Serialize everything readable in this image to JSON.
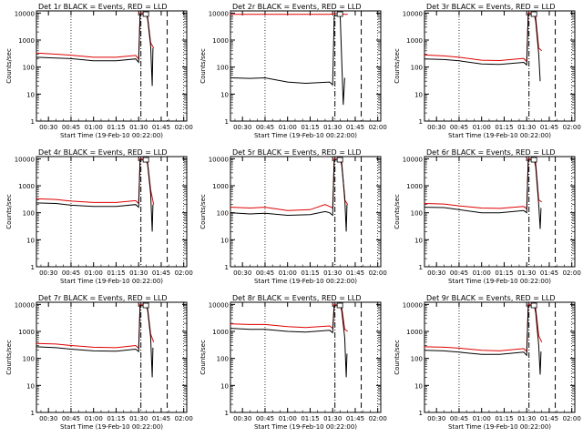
{
  "figure": {
    "xlabel": "Start Time (19-Feb-10 00:22:00)",
    "ylabel": "Counts/sec",
    "time_tick_labels": [
      "00:30",
      "00:45",
      "01:00",
      "01:15",
      "01:30",
      "01:45",
      "02:00"
    ],
    "y_tick_labels": [
      "1",
      "10",
      "100",
      "1000",
      "10000"
    ]
  },
  "chart_data": [
    {
      "type": "line",
      "title": "Det 1r BLACK = Events, RED = LLD",
      "xlabel": "Start Time (19-Feb-10 00:22:00)",
      "ylabel": "Counts/sec",
      "ylog": true,
      "ylim": [
        1,
        12000
      ],
      "xlim": [
        "00:22",
        "02:02"
      ],
      "black": [
        [
          22,
          230
        ],
        [
          35,
          215
        ],
        [
          45,
          205
        ],
        [
          60,
          170
        ],
        [
          75,
          170
        ],
        [
          88,
          200
        ],
        [
          90,
          150
        ],
        [
          91,
          9000
        ],
        [
          95,
          9000
        ],
        [
          96,
          6000
        ],
        [
          98,
          600
        ],
        [
          99,
          20
        ],
        [
          99.5,
          500
        ]
      ],
      "red": [
        [
          22,
          330
        ],
        [
          35,
          300
        ],
        [
          45,
          275
        ],
        [
          60,
          230
        ],
        [
          75,
          230
        ],
        [
          88,
          270
        ],
        [
          90,
          200
        ],
        [
          91,
          10000
        ],
        [
          95,
          10000
        ],
        [
          96,
          7000
        ],
        [
          98,
          800
        ],
        [
          100,
          500
        ]
      ]
    },
    {
      "type": "line",
      "title": "Det 2r BLACK = Events, RED = LLD",
      "xlabel": "Start Time (19-Feb-10 00:22:00)",
      "ylabel": "Counts/sec",
      "ylog": true,
      "ylim": [
        1,
        12000
      ],
      "xlim": [
        "00:22",
        "02:02"
      ],
      "black": [
        [
          22,
          40
        ],
        [
          35,
          38
        ],
        [
          45,
          40
        ],
        [
          60,
          28
        ],
        [
          72,
          25
        ],
        [
          88,
          28
        ],
        [
          90,
          22
        ],
        [
          91,
          8000
        ],
        [
          94,
          8000
        ],
        [
          95,
          9000
        ],
        [
          97,
          4
        ],
        [
          98,
          40
        ]
      ],
      "red": [
        [
          22,
          9000
        ],
        [
          45,
          9000
        ],
        [
          60,
          9000
        ],
        [
          88,
          9000
        ],
        [
          91,
          9500
        ],
        [
          95,
          9500
        ],
        [
          98,
          9000
        ],
        [
          100,
          9000
        ]
      ]
    },
    {
      "type": "line",
      "title": "Det 3r BLACK = Events, RED = LLD",
      "xlabel": "Start Time (19-Feb-10 00:22:00)",
      "ylabel": "Counts/sec",
      "ylog": true,
      "ylim": [
        1,
        12000
      ],
      "xlim": [
        "00:22",
        "02:02"
      ],
      "black": [
        [
          22,
          200
        ],
        [
          35,
          190
        ],
        [
          45,
          170
        ],
        [
          60,
          130
        ],
        [
          72,
          125
        ],
        [
          88,
          150
        ],
        [
          90,
          120
        ],
        [
          91,
          9000
        ],
        [
          95,
          9000
        ],
        [
          96,
          5000
        ],
        [
          98,
          300
        ],
        [
          99,
          30
        ]
      ],
      "red": [
        [
          22,
          280
        ],
        [
          35,
          260
        ],
        [
          45,
          230
        ],
        [
          60,
          180
        ],
        [
          72,
          175
        ],
        [
          88,
          210
        ],
        [
          90,
          160
        ],
        [
          91,
          10000
        ],
        [
          95,
          10000
        ],
        [
          96,
          7000
        ],
        [
          98,
          500
        ],
        [
          100,
          400
        ]
      ]
    },
    {
      "type": "line",
      "title": "Det 4r BLACK = Events, RED = LLD",
      "xlabel": "Start Time (19-Feb-10 00:22:00)",
      "ylabel": "Counts/sec",
      "ylog": true,
      "ylim": [
        1,
        12000
      ],
      "xlim": [
        "00:22",
        "02:02"
      ],
      "black": [
        [
          22,
          230
        ],
        [
          35,
          220
        ],
        [
          45,
          190
        ],
        [
          60,
          170
        ],
        [
          75,
          170
        ],
        [
          88,
          200
        ],
        [
          90,
          160
        ],
        [
          91,
          9000
        ],
        [
          95,
          9000
        ],
        [
          96,
          6000
        ],
        [
          98,
          500
        ],
        [
          99,
          20
        ],
        [
          99.5,
          200
        ]
      ],
      "red": [
        [
          22,
          330
        ],
        [
          35,
          310
        ],
        [
          45,
          270
        ],
        [
          60,
          240
        ],
        [
          75,
          240
        ],
        [
          88,
          280
        ],
        [
          90,
          220
        ],
        [
          91,
          10000
        ],
        [
          95,
          10000
        ],
        [
          96,
          7000
        ],
        [
          98,
          700
        ],
        [
          100,
          200
        ]
      ]
    },
    {
      "type": "line",
      "title": "Det 5r BLACK = Events, RED = LLD",
      "xlabel": "Start Time (19-Feb-10 00:22:00)",
      "ylabel": "Counts/sec",
      "ylog": true,
      "ylim": [
        1,
        12000
      ],
      "xlim": [
        "00:22",
        "02:02"
      ],
      "black": [
        [
          22,
          100
        ],
        [
          35,
          90
        ],
        [
          45,
          95
        ],
        [
          60,
          80
        ],
        [
          75,
          85
        ],
        [
          85,
          110
        ],
        [
          88,
          100
        ],
        [
          90,
          80
        ],
        [
          91,
          9000
        ],
        [
          95,
          9000
        ],
        [
          96,
          6000
        ],
        [
          98,
          400
        ],
        [
          99,
          20
        ],
        [
          99.5,
          200
        ]
      ],
      "red": [
        [
          22,
          160
        ],
        [
          35,
          150
        ],
        [
          45,
          160
        ],
        [
          60,
          120
        ],
        [
          75,
          130
        ],
        [
          85,
          200
        ],
        [
          88,
          170
        ],
        [
          90,
          150
        ],
        [
          91,
          10000
        ],
        [
          95,
          10000
        ],
        [
          96,
          8000
        ],
        [
          98,
          300
        ],
        [
          100,
          200
        ]
      ]
    },
    {
      "type": "line",
      "title": "Det 6r BLACK = Events, RED = LLD",
      "xlabel": "Start Time (19-Feb-10 00:22:00)",
      "ylabel": "Counts/sec",
      "ylog": true,
      "ylim": [
        1,
        12000
      ],
      "xlim": [
        "00:22",
        "02:02"
      ],
      "black": [
        [
          22,
          160
        ],
        [
          35,
          155
        ],
        [
          45,
          130
        ],
        [
          60,
          100
        ],
        [
          72,
          100
        ],
        [
          88,
          120
        ],
        [
          90,
          100
        ],
        [
          91,
          9000
        ],
        [
          95,
          9000
        ],
        [
          96,
          5000
        ],
        [
          98,
          200
        ],
        [
          99,
          25
        ],
        [
          99.5,
          150
        ]
      ],
      "red": [
        [
          22,
          220
        ],
        [
          35,
          210
        ],
        [
          45,
          180
        ],
        [
          60,
          150
        ],
        [
          72,
          145
        ],
        [
          88,
          170
        ],
        [
          90,
          140
        ],
        [
          91,
          10000
        ],
        [
          95,
          10000
        ],
        [
          96,
          7000
        ],
        [
          98,
          300
        ],
        [
          100,
          250
        ]
      ]
    },
    {
      "type": "line",
      "title": "Det 7r BLACK = Events, RED = LLD",
      "xlabel": "Start Time (19-Feb-10 00:22:00)",
      "ylabel": "Counts/sec",
      "ylog": true,
      "ylim": [
        1,
        12000
      ],
      "xlim": [
        "00:22",
        "02:02"
      ],
      "black": [
        [
          22,
          270
        ],
        [
          35,
          250
        ],
        [
          45,
          220
        ],
        [
          60,
          190
        ],
        [
          75,
          185
        ],
        [
          88,
          220
        ],
        [
          90,
          180
        ],
        [
          91,
          9000
        ],
        [
          95,
          9000
        ],
        [
          96,
          6000
        ],
        [
          98,
          600
        ],
        [
          99,
          20
        ],
        [
          99.5,
          250
        ]
      ],
      "red": [
        [
          22,
          360
        ],
        [
          35,
          340
        ],
        [
          45,
          300
        ],
        [
          60,
          260
        ],
        [
          75,
          250
        ],
        [
          88,
          300
        ],
        [
          90,
          240
        ],
        [
          91,
          10000
        ],
        [
          95,
          10000
        ],
        [
          96,
          7000
        ],
        [
          98,
          800
        ],
        [
          100,
          400
        ]
      ]
    },
    {
      "type": "line",
      "title": "Det 8r BLACK = Events, RED = LLD",
      "xlabel": "Start Time (19-Feb-10 00:22:00)",
      "ylabel": "Counts/sec",
      "ylog": true,
      "ylim": [
        1,
        12000
      ],
      "xlim": [
        "00:22",
        "02:02"
      ],
      "black": [
        [
          22,
          1300
        ],
        [
          35,
          1200
        ],
        [
          45,
          1200
        ],
        [
          60,
          1000
        ],
        [
          72,
          950
        ],
        [
          88,
          1100
        ],
        [
          90,
          900
        ],
        [
          91,
          9000
        ],
        [
          95,
          9000
        ],
        [
          96,
          6000
        ],
        [
          98,
          600
        ],
        [
          99,
          20
        ],
        [
          99.5,
          150
        ]
      ],
      "red": [
        [
          22,
          1900
        ],
        [
          35,
          1800
        ],
        [
          45,
          1800
        ],
        [
          60,
          1500
        ],
        [
          72,
          1400
        ],
        [
          88,
          1600
        ],
        [
          90,
          1300
        ],
        [
          91,
          10000
        ],
        [
          95,
          10000
        ],
        [
          96,
          8000
        ],
        [
          98,
          1200
        ],
        [
          100,
          1000
        ]
      ]
    },
    {
      "type": "line",
      "title": "Det 9r BLACK = Events, RED = LLD",
      "xlabel": "Start Time (19-Feb-10 00:22:00)",
      "ylabel": "Counts/sec",
      "ylog": true,
      "ylim": [
        1,
        12000
      ],
      "xlim": [
        "00:22",
        "02:02"
      ],
      "black": [
        [
          22,
          200
        ],
        [
          35,
          190
        ],
        [
          45,
          170
        ],
        [
          60,
          140
        ],
        [
          72,
          140
        ],
        [
          88,
          170
        ],
        [
          90,
          130
        ],
        [
          91,
          9000
        ],
        [
          95,
          9000
        ],
        [
          96,
          5000
        ],
        [
          98,
          300
        ],
        [
          99,
          25
        ],
        [
          99.5,
          180
        ]
      ],
      "red": [
        [
          22,
          270
        ],
        [
          35,
          260
        ],
        [
          45,
          240
        ],
        [
          60,
          200
        ],
        [
          72,
          190
        ],
        [
          88,
          230
        ],
        [
          90,
          180
        ],
        [
          91,
          10000
        ],
        [
          95,
          10000
        ],
        [
          96,
          7000
        ],
        [
          98,
          700
        ],
        [
          100,
          400
        ]
      ]
    }
  ]
}
